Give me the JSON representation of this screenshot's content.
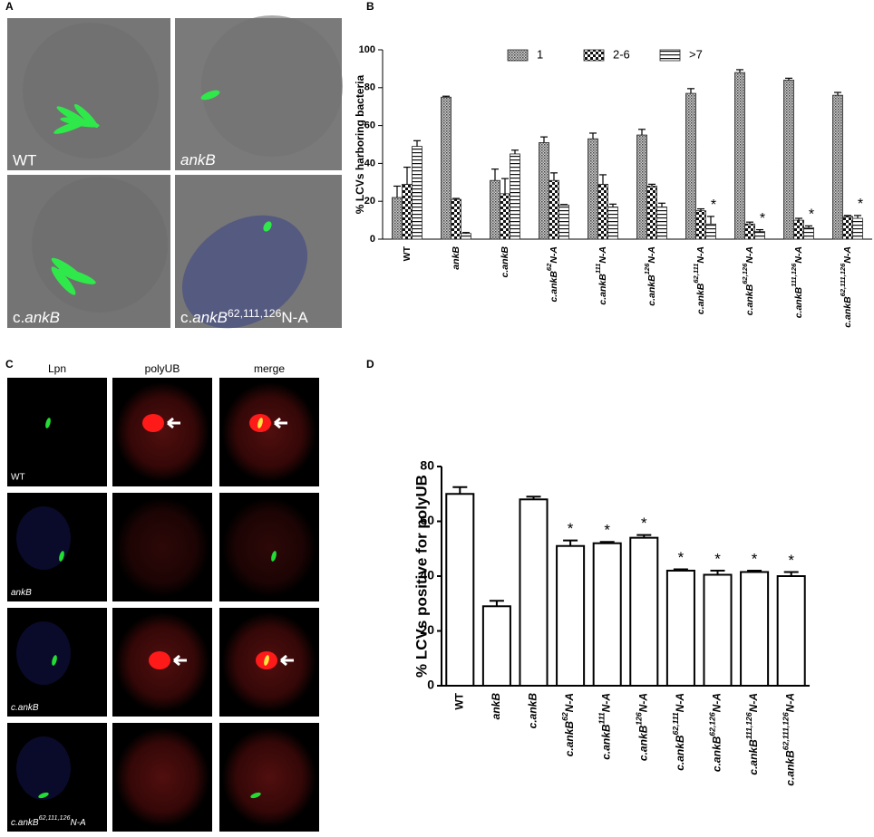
{
  "panels": {
    "A": "A",
    "B": "B",
    "C": "C",
    "D": "D"
  },
  "panel_a": {
    "labels": [
      "WT",
      "ankB",
      "c.ankB",
      "c.ankB62,111,126N-A"
    ]
  },
  "panel_c": {
    "columns": [
      "Lpn",
      "polyUB",
      "merge"
    ],
    "rows": [
      "WT",
      "ankB",
      "c.ankB",
      "c.ankB62,111,126N-A"
    ]
  },
  "chart_data": [
    {
      "type": "bar",
      "ylabel": "% LCVs harboring bacteria",
      "categories": [
        "WT",
        "ankB",
        "c.ankB",
        "c.ankB62N-A",
        "c.ankB111N-A",
        "c.ankB126N-A",
        "c.ankB62,111N-A",
        "c.ankB62,126N-A",
        "c.ankB111,126N-A",
        "c.ankB62,111,126N-A"
      ],
      "series": [
        {
          "name": "1",
          "pattern": "crosshatch",
          "values": [
            22,
            75,
            31,
            51,
            53,
            55,
            77,
            88,
            84,
            76
          ],
          "errors": [
            6,
            0.5,
            6,
            3,
            3,
            3,
            2.5,
            1.5,
            1,
            1.5
          ]
        },
        {
          "name": "2-6",
          "pattern": "checkerboard",
          "values": [
            29,
            21,
            24,
            31,
            29,
            28,
            15,
            8,
            10,
            12
          ],
          "errors": [
            9,
            0.5,
            8,
            4,
            5,
            1,
            1,
            1,
            1,
            0.5
          ]
        },
        {
          "name": ">7",
          "pattern": "horizontal-stripes",
          "values": [
            49,
            3,
            45,
            18,
            17,
            17,
            8,
            4,
            6,
            11
          ],
          "errors": [
            3,
            0.5,
            2,
            0.3,
            1.5,
            2,
            4,
            1,
            1,
            1.5
          ]
        }
      ],
      "significance": [
        null,
        null,
        null,
        null,
        null,
        null,
        "*",
        "*",
        "*",
        "*"
      ],
      "ylim": [
        0,
        100
      ],
      "yticks": [
        0,
        20,
        40,
        60,
        80,
        100
      ],
      "legend": "top"
    },
    {
      "type": "bar",
      "ylabel": "% LCVs positive for polyUB",
      "categories": [
        "WT",
        "ankB",
        "c.ankB",
        "c.ankB62N-A",
        "c.ankB111N-A",
        "c.ankB126N-A",
        "c.ankB62,111N-A",
        "c.ankB62,126N-A",
        "c.ankB111,126N-A",
        "c.ankB62,111,126N-A"
      ],
      "values": [
        70,
        29,
        68,
        51,
        52,
        54,
        42,
        40.5,
        41.5,
        40
      ],
      "errors": [
        2.5,
        2,
        1,
        2,
        0.5,
        1,
        0.5,
        1.5,
        0.5,
        1.5
      ],
      "significance": [
        null,
        null,
        null,
        "*",
        "*",
        "*",
        "*",
        "*",
        "*",
        "*"
      ],
      "color": "#ffffff",
      "edgecolor": "#000000",
      "ylim": [
        0,
        80
      ],
      "yticks": [
        0,
        20,
        40,
        60,
        80
      ]
    }
  ]
}
